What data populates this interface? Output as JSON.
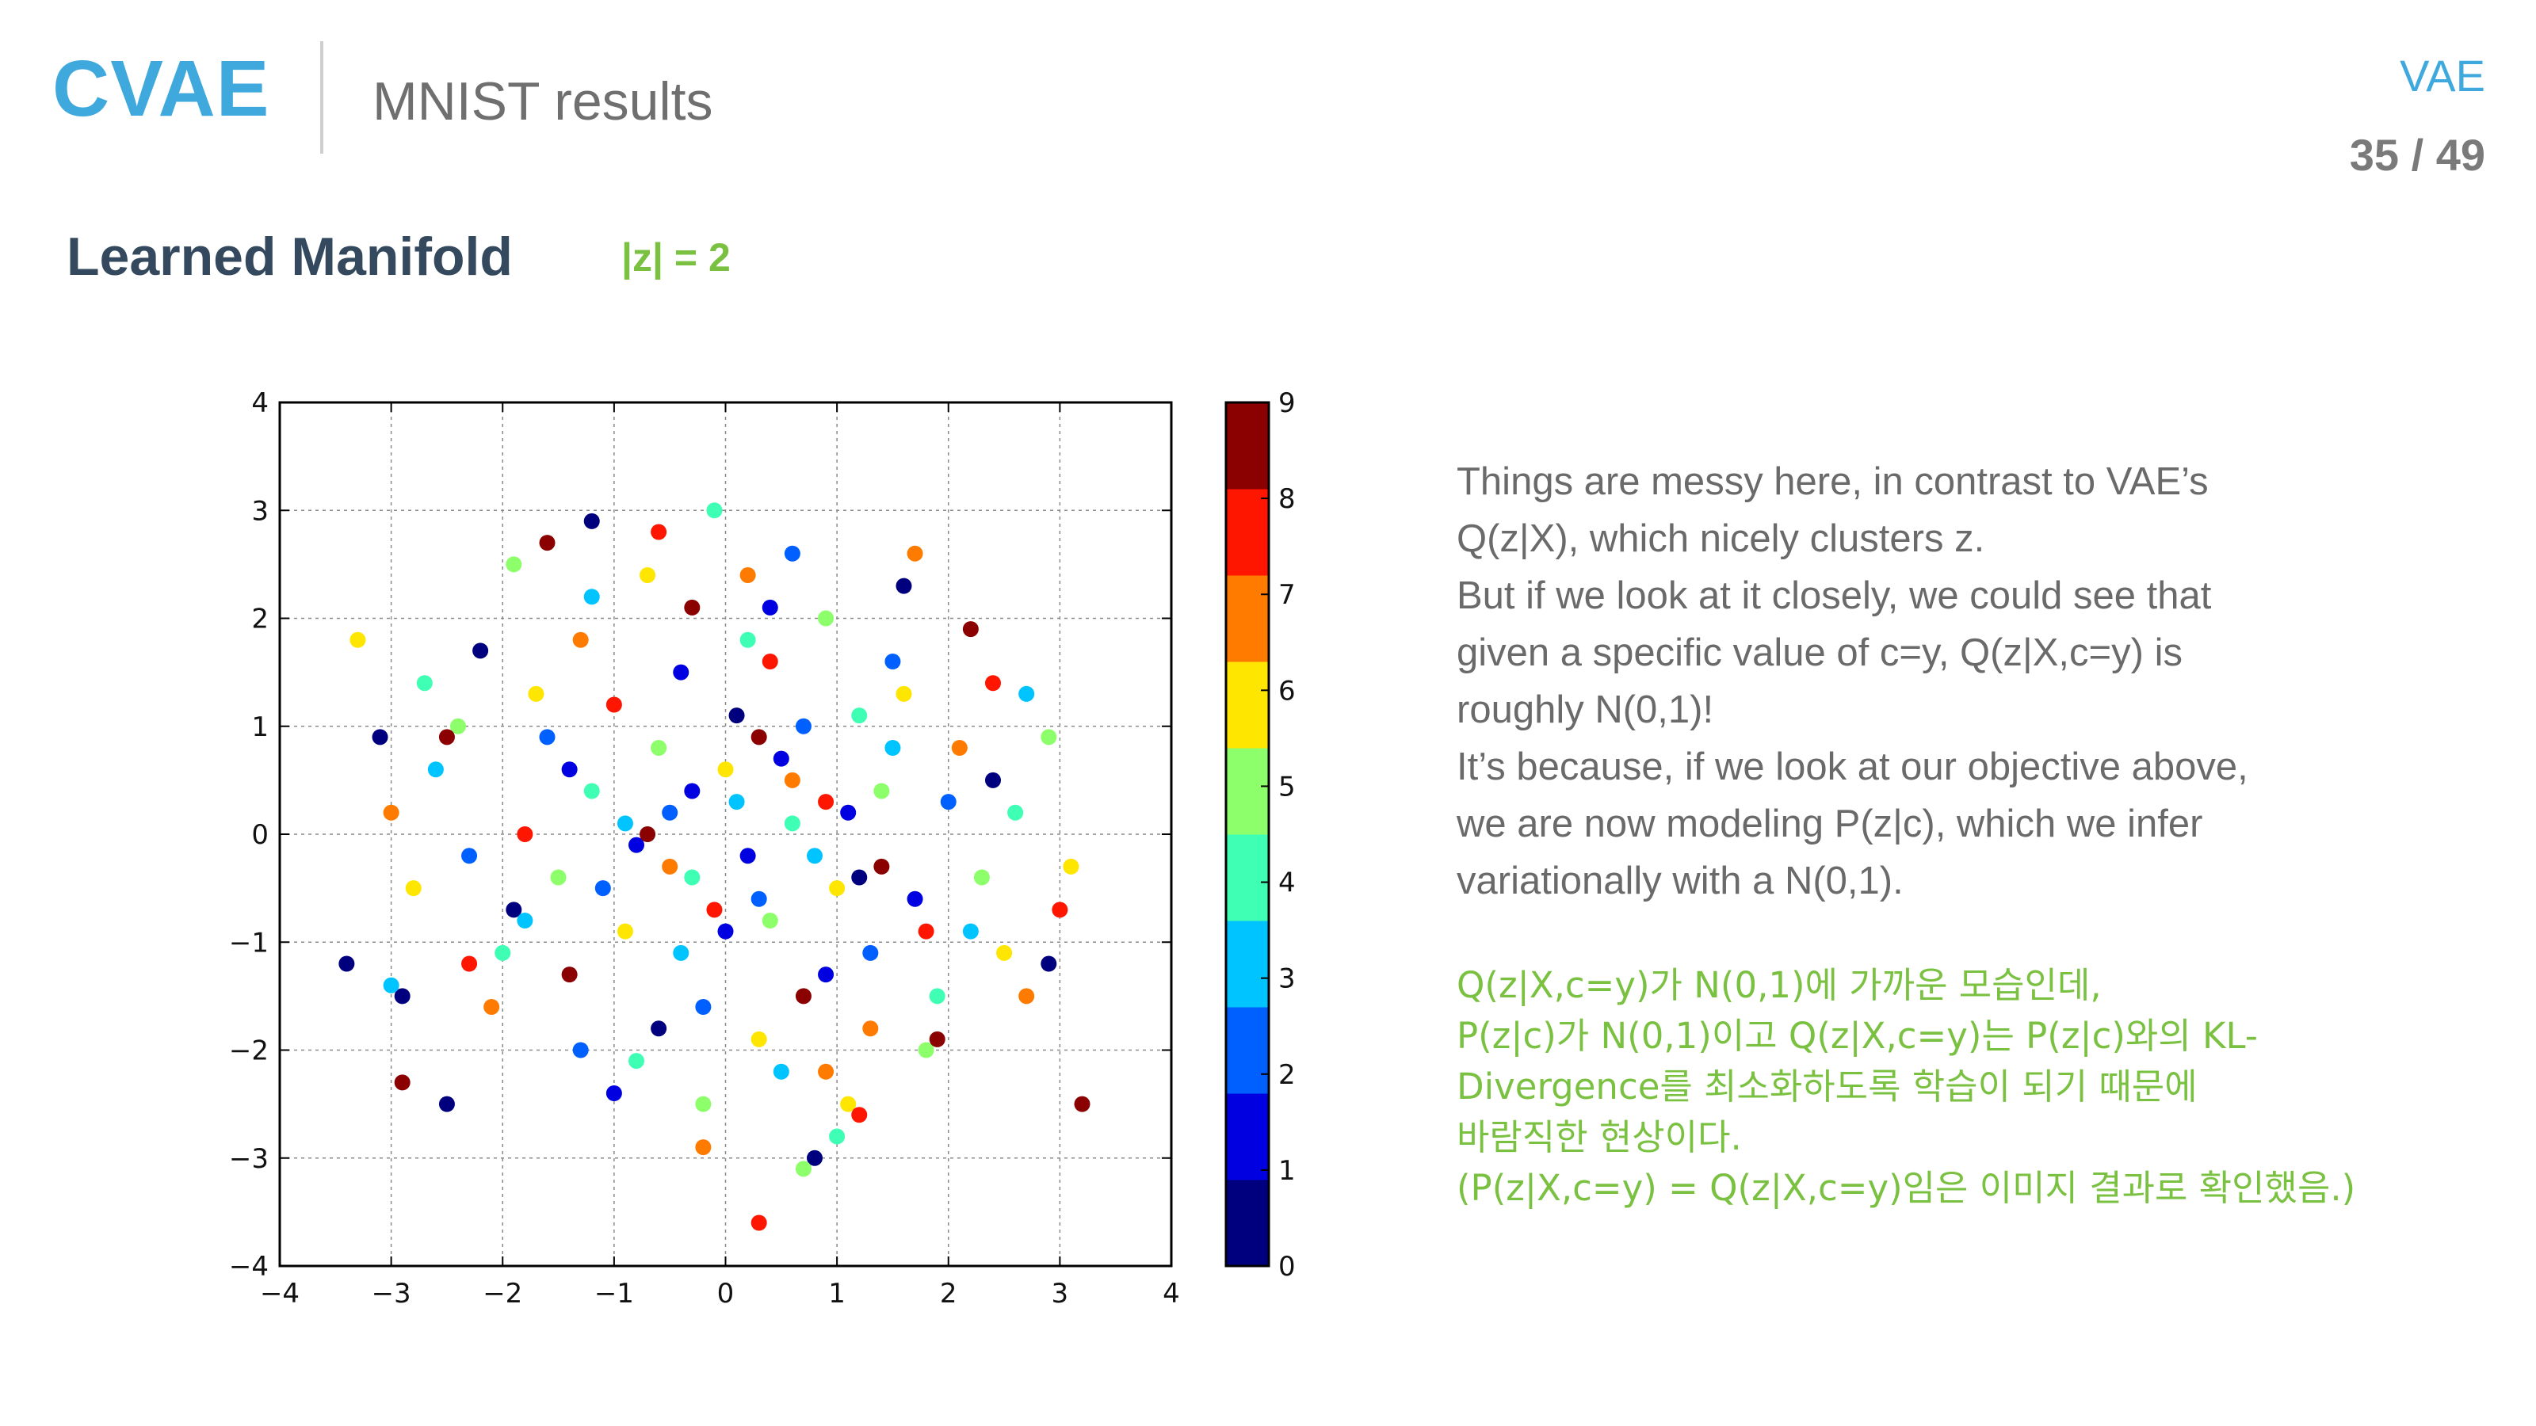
{
  "header": {
    "title": "CVAE",
    "subtitle": "MNIST results",
    "topic": "VAE",
    "page": "35 / 49"
  },
  "section": {
    "title": "Learned Manifold",
    "z_dim": "|z| = 2"
  },
  "body_text": [
    "Things are messy here, in contrast to VAE’s",
    "Q(z|X), which nicely clusters z.",
    "But if we look at it closely, we could see that",
    "given a specific value of c=y, Q(z|X,c=y) is",
    "roughly N(0,1)!",
    "It’s because, if we look at our objective above,",
    "we are now modeling P(z|c), which we infer",
    "variationally with a N(0,1)."
  ],
  "korean_note": [
    "Q(z|X,c=y)가 N(0,1)에 가까운 모습인데,",
    "P(z|c)가 N(0,1)이고 Q(z|X,c=y)는 P(z|c)와의 KL-",
    "Divergence를 최소화하도록 학습이 되기 때문에",
    "바람직한 현상이다.",
    "(P(z|X,c=y) = Q(z|X,c=y)임은 이미지 결과로 확인했음.)"
  ],
  "chart_data": {
    "type": "scatter",
    "xlim": [
      -4,
      4
    ],
    "ylim": [
      -4,
      4
    ],
    "xticks": [
      "−4",
      "−3",
      "−2",
      "−1",
      "0",
      "1",
      "2",
      "3",
      "4"
    ],
    "yticks": [
      "4",
      "3",
      "2",
      "1",
      "0",
      "−1",
      "−2",
      "−3",
      "−4"
    ],
    "grid": true,
    "distribution": "approximately N(0,1) per class, all classes overlapping",
    "series": [
      {
        "name": "0",
        "color": "#00007f",
        "values": [
          [
            -3.4,
            -1.2
          ],
          [
            -2.9,
            -1.5
          ],
          [
            -3.1,
            0.9
          ],
          [
            -2.5,
            -2.5
          ],
          [
            -1.2,
            2.9
          ],
          [
            0.8,
            -3.0
          ],
          [
            1.6,
            2.3
          ],
          [
            -1.9,
            -0.7
          ],
          [
            0.1,
            1.1
          ],
          [
            2.4,
            0.5
          ],
          [
            -0.6,
            -1.8
          ],
          [
            1.2,
            -0.4
          ],
          [
            -2.2,
            1.7
          ],
          [
            2.9,
            -1.2
          ]
        ]
      },
      {
        "name": "1",
        "color": "#0000e0",
        "values": [
          [
            -0.3,
            0.4
          ],
          [
            0.2,
            -0.2
          ],
          [
            0.5,
            0.7
          ],
          [
            -0.8,
            -0.1
          ],
          [
            1.1,
            0.2
          ],
          [
            0.0,
            -0.9
          ],
          [
            -0.4,
            1.5
          ],
          [
            0.9,
            -1.3
          ],
          [
            -1.4,
            0.6
          ],
          [
            1.7,
            -0.6
          ],
          [
            0.4,
            2.1
          ],
          [
            -1.0,
            -2.4
          ]
        ]
      },
      {
        "name": "2",
        "color": "#0060ff",
        "values": [
          [
            -1.1,
            -0.5
          ],
          [
            -0.5,
            0.2
          ],
          [
            0.3,
            -0.6
          ],
          [
            0.7,
            1.0
          ],
          [
            -1.6,
            0.9
          ],
          [
            1.3,
            -1.1
          ],
          [
            -0.2,
            -1.6
          ],
          [
            2.0,
            0.3
          ],
          [
            -2.3,
            -0.2
          ],
          [
            0.6,
            2.6
          ],
          [
            -1.3,
            -2.0
          ],
          [
            1.5,
            1.6
          ]
        ]
      },
      {
        "name": "3",
        "color": "#00c4ff",
        "values": [
          [
            -1.8,
            -0.8
          ],
          [
            -0.9,
            0.1
          ],
          [
            0.1,
            0.3
          ],
          [
            0.8,
            -0.2
          ],
          [
            -0.4,
            -1.1
          ],
          [
            1.5,
            0.8
          ],
          [
            -2.6,
            0.6
          ],
          [
            2.2,
            -0.9
          ],
          [
            -1.2,
            2.2
          ],
          [
            0.5,
            -2.2
          ],
          [
            -3.0,
            -1.4
          ],
          [
            2.7,
            1.3
          ]
        ]
      },
      {
        "name": "4",
        "color": "#3fffb5",
        "values": [
          [
            -1.2,
            0.4
          ],
          [
            -0.3,
            -0.4
          ],
          [
            0.6,
            0.1
          ],
          [
            1.2,
            1.1
          ],
          [
            -2.0,
            -1.1
          ],
          [
            0.2,
            1.8
          ],
          [
            1.9,
            -1.5
          ],
          [
            -0.8,
            -2.1
          ],
          [
            2.6,
            0.2
          ],
          [
            -2.7,
            1.4
          ],
          [
            1.0,
            -2.8
          ],
          [
            -0.1,
            3.0
          ]
        ]
      },
      {
        "name": "5",
        "color": "#8dff6a",
        "values": [
          [
            -0.6,
            0.8
          ],
          [
            0.4,
            -0.8
          ],
          [
            1.4,
            0.4
          ],
          [
            -1.5,
            -0.4
          ],
          [
            0.9,
            2.0
          ],
          [
            -2.4,
            1.0
          ],
          [
            2.3,
            -0.4
          ],
          [
            -0.2,
            -2.5
          ],
          [
            1.8,
            -2.0
          ],
          [
            -1.9,
            2.5
          ],
          [
            2.9,
            0.9
          ],
          [
            0.7,
            -3.1
          ]
        ]
      },
      {
        "name": "6",
        "color": "#ffe600",
        "values": [
          [
            -0.9,
            -0.9
          ],
          [
            0.0,
            0.6
          ],
          [
            1.0,
            -0.5
          ],
          [
            -1.7,
            1.3
          ],
          [
            1.6,
            1.3
          ],
          [
            -2.8,
            -0.5
          ],
          [
            2.5,
            -1.1
          ],
          [
            0.3,
            -1.9
          ],
          [
            -0.7,
            2.4
          ],
          [
            3.1,
            -0.3
          ],
          [
            -3.3,
            1.8
          ],
          [
            1.1,
            -2.5
          ]
        ]
      },
      {
        "name": "7",
        "color": "#ff7b00",
        "values": [
          [
            -0.5,
            -0.3
          ],
          [
            0.6,
            0.5
          ],
          [
            -1.3,
            1.8
          ],
          [
            1.3,
            -1.8
          ],
          [
            2.1,
            0.8
          ],
          [
            -2.1,
            -1.6
          ],
          [
            0.2,
            2.4
          ],
          [
            -0.2,
            -2.9
          ],
          [
            2.7,
            -1.5
          ],
          [
            -3.0,
            0.2
          ],
          [
            1.7,
            2.6
          ],
          [
            0.9,
            -2.2
          ]
        ]
      },
      {
        "name": "8",
        "color": "#ff1600",
        "values": [
          [
            -0.1,
            -0.7
          ],
          [
            0.9,
            0.3
          ],
          [
            -1.0,
            1.2
          ],
          [
            1.8,
            -0.9
          ],
          [
            -1.8,
            0.0
          ],
          [
            0.4,
            1.6
          ],
          [
            2.4,
            1.4
          ],
          [
            -2.3,
            -1.2
          ],
          [
            1.2,
            -2.6
          ],
          [
            -0.6,
            2.8
          ],
          [
            3.0,
            -0.7
          ],
          [
            0.3,
            -3.6
          ]
        ]
      },
      {
        "name": "9",
        "color": "#8b0000",
        "values": [
          [
            -0.7,
            0.0
          ],
          [
            0.3,
            0.9
          ],
          [
            1.4,
            -0.3
          ],
          [
            -1.4,
            -1.3
          ],
          [
            0.7,
            -1.5
          ],
          [
            -2.5,
            0.9
          ],
          [
            2.2,
            1.9
          ],
          [
            -0.3,
            2.1
          ],
          [
            1.9,
            -1.9
          ],
          [
            -1.6,
            2.7
          ],
          [
            3.2,
            -2.5
          ],
          [
            -2.9,
            -2.3
          ]
        ]
      }
    ],
    "colorbar": {
      "ticks": [
        "0",
        "1",
        "2",
        "3",
        "4",
        "5",
        "6",
        "7",
        "8",
        "9"
      ],
      "colors": [
        "#00007f",
        "#0000e0",
        "#0060ff",
        "#00c4ff",
        "#3fffb5",
        "#8dff6a",
        "#ffe600",
        "#ff7b00",
        "#ff1600",
        "#8b0000"
      ]
    }
  }
}
